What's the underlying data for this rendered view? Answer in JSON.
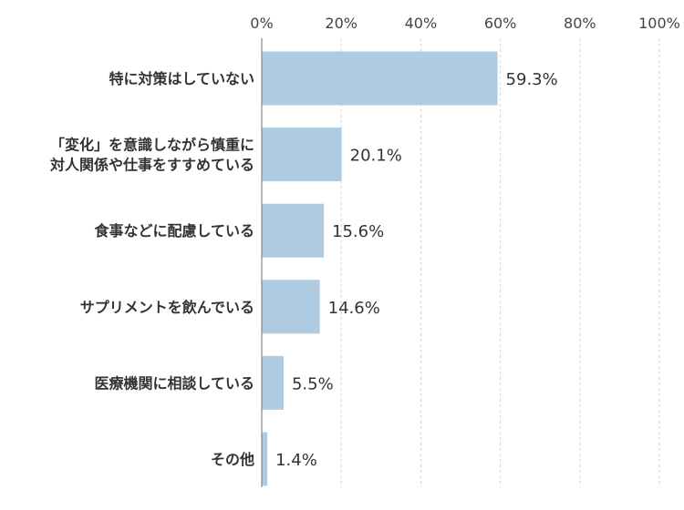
{
  "chart_data": {
    "type": "bar",
    "orientation": "horizontal",
    "categories": [
      [
        "特に対策はしていない"
      ],
      [
        "「変化」を意識しながら慎重に",
        "対人関係や仕事をすすめている"
      ],
      [
        "食事などに配慮している"
      ],
      [
        "サプリメントを飲んでいる"
      ],
      [
        "医療機関に相談している"
      ],
      [
        "その他"
      ]
    ],
    "values": [
      59.3,
      20.1,
      15.6,
      14.6,
      5.5,
      1.4
    ],
    "value_labels": [
      "59.3%",
      "20.1%",
      "15.6%",
      "14.6%",
      "5.5%",
      "1.4%"
    ],
    "xlim": [
      0,
      100
    ],
    "x_ticks": [
      0,
      20,
      40,
      60,
      80,
      100
    ],
    "x_tick_labels": [
      "0%",
      "20%",
      "40%",
      "60%",
      "80%",
      "100%"
    ],
    "axis_position": "top",
    "grid": true,
    "bar_color": "#aecbe2",
    "title": "",
    "xlabel": "",
    "ylabel": ""
  }
}
